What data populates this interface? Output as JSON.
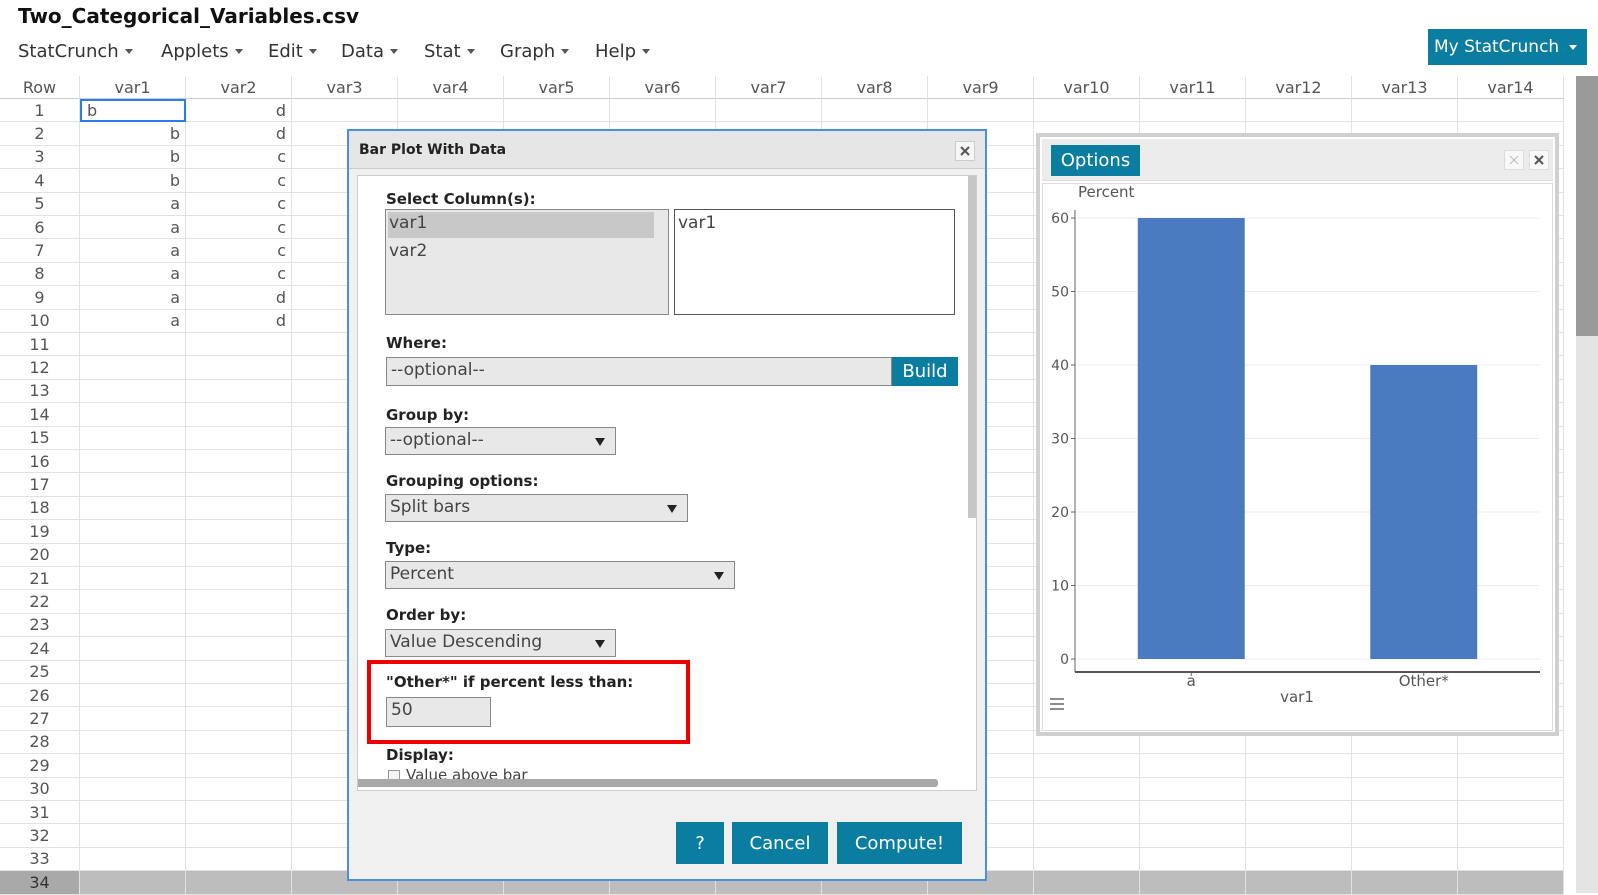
{
  "header": {
    "title": "Two_Categorical_Variables.csv",
    "menu": [
      "StatCrunch",
      "Applets",
      "Edit",
      "Data",
      "Stat",
      "Graph",
      "Help"
    ],
    "account_button": "My StatCrunch"
  },
  "sheet": {
    "columns": [
      "Row",
      "var1",
      "var2",
      "var3",
      "var4",
      "var5",
      "var6",
      "var7",
      "var8",
      "var9",
      "var10",
      "var11",
      "var12",
      "var13",
      "var14"
    ],
    "row_numbers": [
      1,
      2,
      3,
      4,
      5,
      6,
      7,
      8,
      9,
      10,
      11,
      12,
      13,
      14,
      15,
      16,
      17,
      18,
      19,
      20,
      21,
      22,
      23,
      24,
      25,
      26,
      27,
      28,
      29,
      30,
      31,
      32,
      33,
      34
    ],
    "rows": [
      [
        "b",
        "d"
      ],
      [
        "b",
        "d"
      ],
      [
        "b",
        "c"
      ],
      [
        "b",
        "c"
      ],
      [
        "a",
        "c"
      ],
      [
        "a",
        "c"
      ],
      [
        "a",
        "c"
      ],
      [
        "a",
        "c"
      ],
      [
        "a",
        "d"
      ],
      [
        "a",
        "d"
      ]
    ]
  },
  "dialog": {
    "title": "Bar Plot With Data",
    "select_label": "Select Column(s):",
    "available_columns": [
      "var1",
      "var2"
    ],
    "selected_columns": [
      "var1"
    ],
    "where_label": "Where:",
    "where_placeholder": "--optional--",
    "build_button": "Build",
    "group_by_label": "Group by:",
    "group_by_value": "--optional--",
    "grouping_options_label": "Grouping options:",
    "grouping_options_value": "Split bars",
    "type_label": "Type:",
    "type_value": "Percent",
    "order_by_label": "Order by:",
    "order_by_value": "Value Descending",
    "other_label": "\"Other*\" if percent less than:",
    "other_value": "50",
    "display_label": "Display:",
    "display_option": "Value above bar",
    "buttons": [
      "?",
      "Cancel",
      "Compute!"
    ]
  },
  "options_window": {
    "tab": "Options"
  },
  "chart_data": {
    "type": "bar",
    "ylabel": "Percent",
    "xlabel": "var1",
    "categories": [
      "a",
      "Other*"
    ],
    "values": [
      60,
      40
    ],
    "color": "#4a7abf",
    "ylim": [
      0,
      60
    ],
    "yticks": [
      0,
      10,
      20,
      30,
      40,
      50,
      60
    ],
    "grid": true
  }
}
